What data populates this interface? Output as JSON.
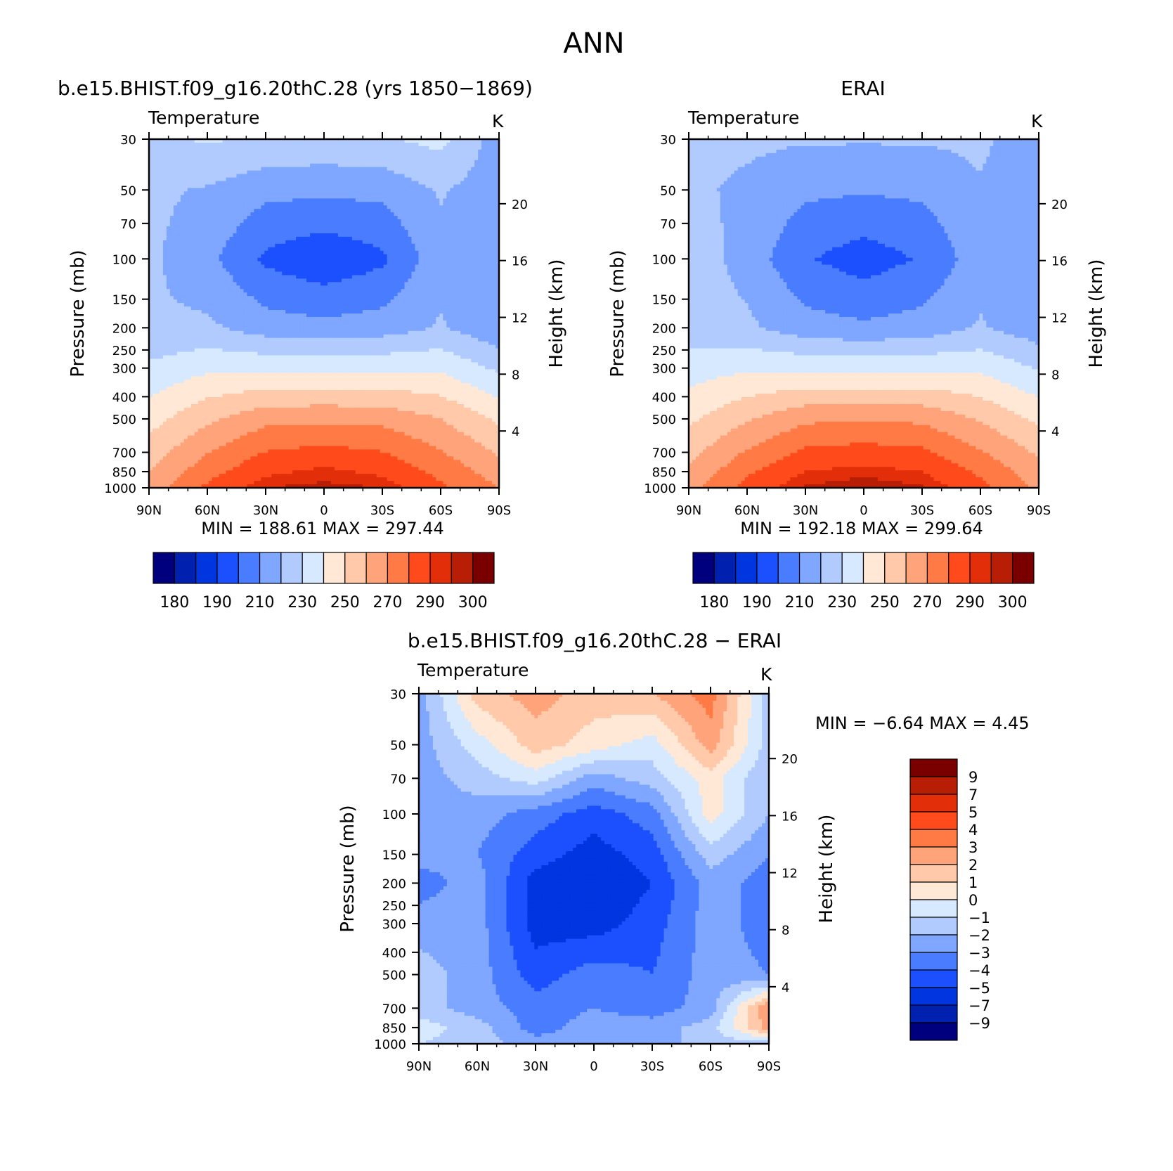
{
  "title": "ANN",
  "panels": [
    {
      "id": "model",
      "subtitle": "b.e15.BHIST.f09_g16.20thC.28 (yrs 1850−1869)",
      "left_label": "Temperature",
      "right_label": "K",
      "minmax": "MIN = 188.61 MAX = 297.44"
    },
    {
      "id": "obs",
      "subtitle": "ERAI",
      "left_label": "Temperature",
      "right_label": "K",
      "minmax": "MIN = 192.18 MAX = 299.64"
    },
    {
      "id": "diff",
      "subtitle": "b.e15.BHIST.f09_g16.20thC.28 − ERAI",
      "left_label": "Temperature",
      "right_label": "K",
      "minmax": "MIN = −6.64 MAX = 4.45"
    }
  ],
  "chart_data": [
    {
      "type": "heatmap",
      "title": "b.e15.BHIST.f09_g16.20thC.28 (yrs 1850−1869)",
      "variable": "Temperature",
      "units": "K",
      "xlabel": "",
      "ylabel": "Pressure (mb)",
      "y2label": "Height (km)",
      "x_ticks": [
        "90N",
        "60N",
        "30N",
        "0",
        "30S",
        "60S",
        "90S"
      ],
      "y_ticks": [
        30,
        50,
        70,
        100,
        150,
        200,
        250,
        300,
        400,
        500,
        700,
        850,
        1000
      ],
      "y2_ticks": [
        20,
        16,
        12,
        8,
        4
      ],
      "y_scale": "log",
      "ylim": [
        1000,
        30
      ],
      "stats": {
        "min": 188.61,
        "max": 297.44
      },
      "lat": [
        90,
        60,
        30,
        0,
        -30,
        -60,
        -90
      ],
      "pressure": [
        30,
        50,
        100,
        200,
        500,
        850,
        1000
      ],
      "values": [
        [
          228,
          231,
          229,
          228,
          229,
          233,
          215
        ],
        [
          222,
          219,
          213,
          212,
          213,
          221,
          214
        ],
        [
          222,
          213,
          198,
          192,
          198,
          217,
          213
        ],
        [
          221,
          222,
          215,
          213,
          215,
          221,
          212
        ],
        [
          246,
          258,
          267,
          268,
          267,
          260,
          248
        ],
        [
          260,
          276,
          288,
          292,
          288,
          277,
          265
        ],
        [
          264,
          282,
          295,
          297,
          295,
          282,
          270
        ]
      ],
      "contour_levels": [
        180,
        185,
        190,
        200,
        210,
        220,
        230,
        240,
        250,
        260,
        270,
        280,
        290,
        295,
        300
      ],
      "colorbar_labels": [
        "180",
        "190",
        "210",
        "230",
        "250",
        "270",
        "290",
        "300"
      ]
    },
    {
      "type": "heatmap",
      "title": "ERAI",
      "variable": "Temperature",
      "units": "K",
      "xlabel": "",
      "ylabel": "Pressure (mb)",
      "y2label": "Height (km)",
      "x_ticks": [
        "90N",
        "60N",
        "30N",
        "0",
        "30S",
        "60S",
        "90S"
      ],
      "y_ticks": [
        30,
        50,
        70,
        100,
        150,
        200,
        250,
        300,
        400,
        500,
        700,
        850,
        1000
      ],
      "y2_ticks": [
        20,
        16,
        12,
        8,
        4
      ],
      "y_scale": "log",
      "ylim": [
        1000,
        30
      ],
      "stats": {
        "min": 192.18,
        "max": 299.64
      },
      "lat": [
        90,
        60,
        30,
        0,
        -30,
        -60,
        -90
      ],
      "pressure": [
        30,
        50,
        100,
        200,
        500,
        850,
        1000
      ],
      "values": [
        [
          222,
          222,
          221,
          221,
          221,
          222,
          214
        ],
        [
          222,
          218,
          212,
          211,
          212,
          219,
          212
        ],
        [
          226,
          216,
          201,
          195,
          201,
          216,
          210
        ],
        [
          225,
          222,
          214,
          212,
          214,
          221,
          214
        ],
        [
          248,
          259,
          268,
          269,
          268,
          259,
          248
        ],
        [
          262,
          278,
          290,
          293,
          290,
          278,
          264
        ],
        [
          266,
          284,
          296,
          299,
          296,
          283,
          268
        ]
      ],
      "contour_levels": [
        180,
        185,
        190,
        200,
        210,
        220,
        230,
        240,
        250,
        260,
        270,
        280,
        290,
        295,
        300
      ],
      "colorbar_labels": [
        "180",
        "190",
        "210",
        "230",
        "250",
        "270",
        "290",
        "300"
      ]
    },
    {
      "type": "heatmap",
      "title": "b.e15.BHIST.f09_g16.20thC.28 − ERAI",
      "variable": "Temperature",
      "units": "K",
      "xlabel": "",
      "ylabel": "Pressure (mb)",
      "y2label": "Height (km)",
      "x_ticks": [
        "90N",
        "60N",
        "30N",
        "0",
        "30S",
        "60S",
        "90S"
      ],
      "y_ticks": [
        30,
        50,
        70,
        100,
        150,
        200,
        250,
        300,
        400,
        500,
        700,
        850,
        1000
      ],
      "y2_ticks": [
        20,
        16,
        12,
        8,
        4
      ],
      "y_scale": "log",
      "ylim": [
        1000,
        30
      ],
      "stats": {
        "min": -6.64,
        "max": 4.45
      },
      "lat": [
        90,
        60,
        30,
        0,
        -30,
        -60,
        -90
      ],
      "pressure": [
        30,
        50,
        70,
        100,
        150,
        200,
        300,
        500,
        700,
        850,
        1000
      ],
      "values": [
        [
          -2.5,
          1.5,
          2.5,
          1.5,
          2.0,
          3.5,
          -1.5
        ],
        [
          -2.5,
          -0.5,
          1.5,
          0.5,
          -0.5,
          2.5,
          -1.5
        ],
        [
          -2.5,
          -1.5,
          -0.5,
          -2.5,
          -1.5,
          0.5,
          -2.0
        ],
        [
          -2.5,
          -2.5,
          -3.5,
          -4.5,
          -3.5,
          0.5,
          -2.0
        ],
        [
          -2.5,
          -3.0,
          -4.5,
          -5.5,
          -4.5,
          -1.5,
          -3.0
        ],
        [
          -3.5,
          -2.5,
          -5.5,
          -6.0,
          -5.0,
          -2.5,
          -3.5
        ],
        [
          -2.5,
          -2.5,
          -5.5,
          -5.5,
          -4.5,
          -2.5,
          -3.5
        ],
        [
          -1.5,
          -2.5,
          -4.5,
          -3.5,
          -4.0,
          -2.5,
          -3.0
        ],
        [
          -1.5,
          -2.5,
          -3.5,
          -3.0,
          -3.5,
          -2.5,
          3.0
        ],
        [
          -0.5,
          -1.5,
          -3.5,
          -2.5,
          -2.5,
          -1.5,
          2.5
        ],
        [
          -1.0,
          -1.5,
          -2.5,
          -2.5,
          -2.5,
          -1.5,
          -1.5
        ]
      ],
      "contour_levels": [
        -9,
        -7,
        -5,
        -4,
        -3,
        -2,
        -1,
        0,
        1,
        2,
        3,
        4,
        5,
        7,
        9
      ],
      "colorbar_labels": [
        "9",
        "7",
        "5",
        "4",
        "3",
        "2",
        "1",
        "0",
        "−1",
        "−2",
        "−3",
        "−4",
        "−5",
        "−7",
        "−9"
      ]
    }
  ],
  "colors": {
    "abs_palette": [
      "#00007f",
      "#0020b0",
      "#0035e0",
      "#1c50ff",
      "#4a7cff",
      "#7fa7ff",
      "#b1cbff",
      "#d6e9ff",
      "#ffe8d6",
      "#ffc9aa",
      "#ffa47a",
      "#ff7a45",
      "#ff4b1c",
      "#e22f0a",
      "#b81e05",
      "#7a0000"
    ],
    "diff_palette": [
      "#00007f",
      "#0020b0",
      "#0035e0",
      "#1c50ff",
      "#4a7cff",
      "#7fa7ff",
      "#b1cbff",
      "#d6e9ff",
      "#ffe8d6",
      "#ffc9aa",
      "#ffa47a",
      "#ff7a45",
      "#ff4b1c",
      "#e22f0a",
      "#b81e05",
      "#7a0000"
    ]
  }
}
